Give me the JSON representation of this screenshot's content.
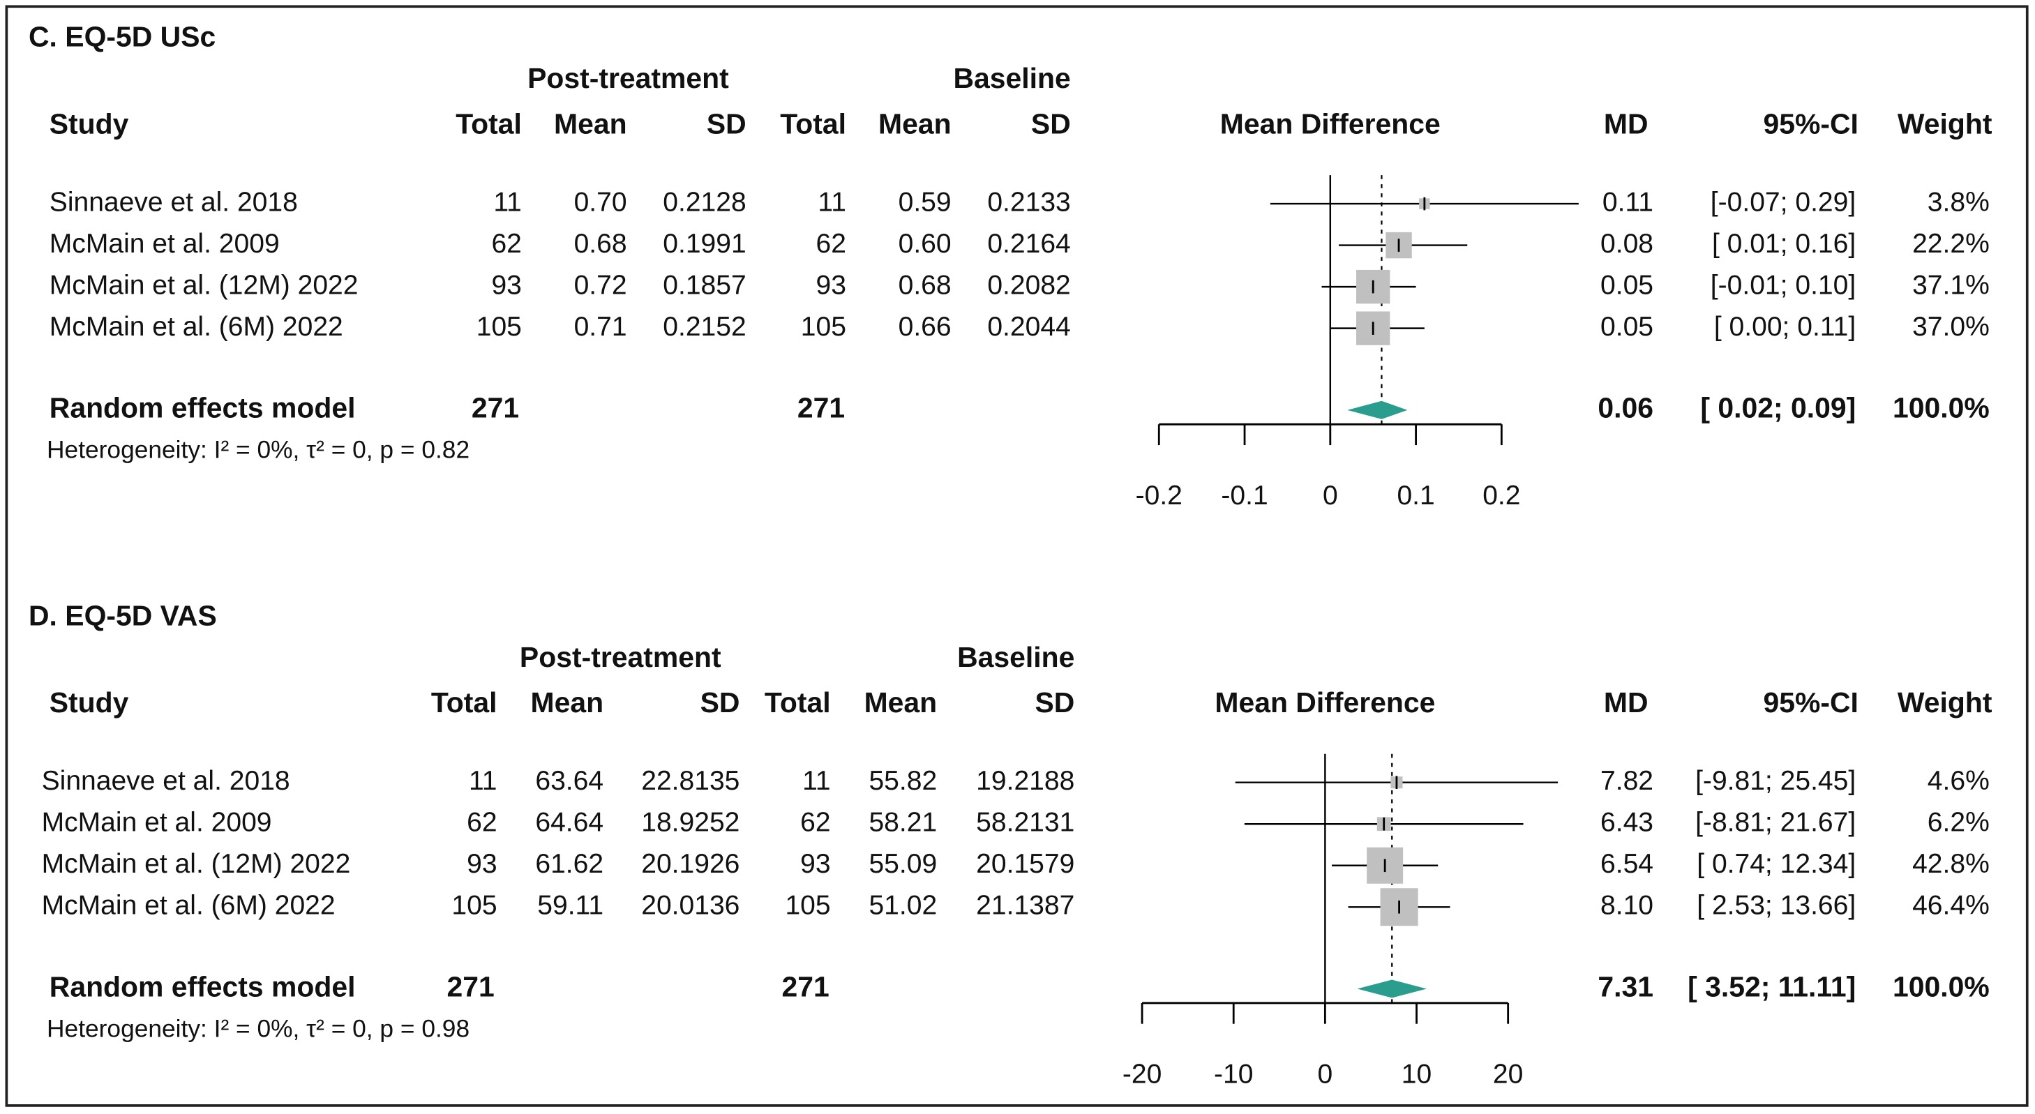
{
  "chart_data": [
    {
      "type": "forest",
      "title": "C. EQ-5D USc",
      "group_headers": [
        "Post-treatment",
        "Baseline"
      ],
      "columns": [
        "Study",
        "Total",
        "Mean",
        "SD",
        "Total",
        "Mean",
        "SD"
      ],
      "effect_header": "Mean Difference",
      "md_header": "MD",
      "ci_header": "95%-CI",
      "weight_header": "Weight",
      "rows": [
        [
          "Sinnaeve et al. 2018",
          "11",
          "0.70",
          "0.2128",
          "11",
          "0.59",
          "0.2133"
        ],
        [
          "McMain et al. 2009",
          "62",
          "0.68",
          "0.1991",
          "62",
          "0.60",
          "0.2164"
        ],
        [
          "McMain et al. (12M) 2022",
          "93",
          "0.72",
          "0.1857",
          "93",
          "0.68",
          "0.2082"
        ],
        [
          "McMain et al. (6M) 2022",
          "105",
          "0.71",
          "0.2152",
          "105",
          "0.66",
          "0.2044"
        ]
      ],
      "md": {
        "values": [
          0.11,
          0.08,
          0.05,
          0.05
        ],
        "value_labels": [
          "0.11",
          "0.08",
          "0.05",
          "0.05"
        ]
      },
      "ci_low": [
        -0.07,
        0.01,
        -0.01,
        0.0
      ],
      "ci_high": [
        0.29,
        0.16,
        0.1,
        0.11
      ],
      "ci_labels": [
        "[-0.07; 0.29]",
        "[ 0.01; 0.16]",
        "[-0.01; 0.10]",
        "[ 0.00; 0.11]"
      ],
      "weight": {
        "values": [
          3.8,
          22.2,
          37.1,
          37.0
        ],
        "value_labels": [
          "3.8%",
          "22.2%",
          "37.1%",
          "37.0%"
        ]
      },
      "pooled": {
        "label": "Random effects model",
        "totals": [
          "271",
          "271"
        ],
        "md": 0.06,
        "md_label": "0.06",
        "ci_low": 0.02,
        "ci_high": 0.09,
        "ci_label": "[ 0.02; 0.09]",
        "weight_label": "100.0%"
      },
      "heterogeneity": "Heterogeneity: I² = 0%, τ² = 0, p = 0.82",
      "xlim": [
        -0.2,
        0.2
      ],
      "xticks": [
        -0.2,
        -0.1,
        0,
        0.1,
        0.2
      ],
      "square_color": "#c0c0c0",
      "diamond_color": "#2a9d8f"
    },
    {
      "type": "forest",
      "title": "D. EQ-5D VAS",
      "group_headers": [
        "Post-treatment",
        "Baseline"
      ],
      "columns": [
        "Study",
        "Total",
        "Mean",
        "SD",
        "Total",
        "Mean",
        "SD"
      ],
      "effect_header": "Mean Difference",
      "md_header": "MD",
      "ci_header": "95%-CI",
      "weight_header": "Weight",
      "rows": [
        [
          "Sinnaeve et al. 2018",
          "11",
          "63.64",
          "22.8135",
          "11",
          "55.82",
          "19.2188"
        ],
        [
          "McMain et al. 2009",
          "62",
          "64.64",
          "18.9252",
          "62",
          "58.21",
          "58.2131"
        ],
        [
          "McMain et al. (12M) 2022",
          "93",
          "61.62",
          "20.1926",
          "93",
          "55.09",
          "20.1579"
        ],
        [
          "McMain et al. (6M) 2022",
          "105",
          "59.11",
          "20.0136",
          "105",
          "51.02",
          "21.1387"
        ]
      ],
      "md": {
        "values": [
          7.82,
          6.43,
          6.54,
          8.1
        ],
        "value_labels": [
          "7.82",
          "6.43",
          "6.54",
          "8.10"
        ]
      },
      "ci_low": [
        -9.81,
        -8.81,
        0.74,
        2.53
      ],
      "ci_high": [
        25.45,
        21.67,
        12.34,
        13.66
      ],
      "ci_labels": [
        "[-9.81; 25.45]",
        "[-8.81; 21.67]",
        "[ 0.74; 12.34]",
        "[ 2.53; 13.66]"
      ],
      "weight": {
        "values": [
          4.6,
          6.2,
          42.8,
          46.4
        ],
        "value_labels": [
          "4.6%",
          "6.2%",
          "42.8%",
          "46.4%"
        ]
      },
      "pooled": {
        "label": "Random effects model",
        "totals": [
          "271",
          "271"
        ],
        "md": 7.31,
        "md_label": "7.31",
        "ci_low": 3.52,
        "ci_high": 11.11,
        "ci_label": "[ 3.52; 11.11]",
        "weight_label": "100.0%"
      },
      "heterogeneity": "Heterogeneity: I² = 0%, τ² = 0, p = 0.98",
      "xlim": [
        -20,
        20
      ],
      "xticks": [
        -20,
        -10,
        0,
        10,
        20
      ],
      "square_color": "#c0c0c0",
      "diamond_color": "#2a9d8f"
    }
  ]
}
